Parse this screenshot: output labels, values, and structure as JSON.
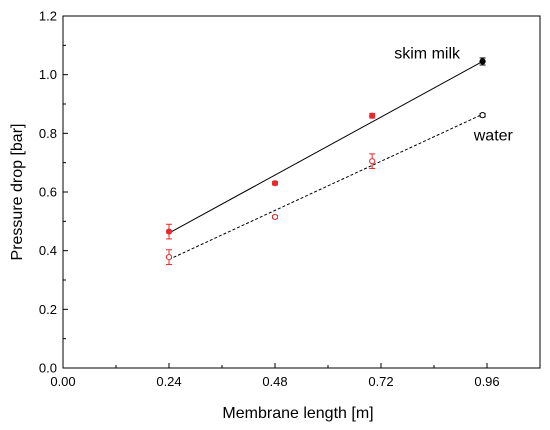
{
  "chart_data": {
    "type": "scatter",
    "xlabel": "Membrane length [m]",
    "ylabel": "Pressure drop [bar]",
    "xlim": [
      0,
      1.08
    ],
    "ylim": [
      0,
      1.2
    ],
    "x_ticks": [
      0,
      0.24,
      0.48,
      0.72,
      0.96
    ],
    "x_tick_labels": [
      "0.00",
      "0.24",
      "0.48",
      "0.72",
      "0.96"
    ],
    "y_ticks": [
      0,
      0.2,
      0.4,
      0.6,
      0.8,
      1.0,
      1.2
    ],
    "y_tick_labels": [
      "0.0",
      "0.2",
      "0.4",
      "0.6",
      "0.8",
      "1.0",
      "1.2"
    ],
    "grid": false,
    "series": [
      {
        "name": "skim milk",
        "marker": "filled-circle",
        "line_style": "solid",
        "x": [
          0.24,
          0.48,
          0.7,
          0.95
        ],
        "y": [
          0.465,
          0.63,
          0.86,
          1.045
        ],
        "error": [
          0.025,
          0.006,
          0.008,
          0.012
        ],
        "point_colors": [
          "#e8282b",
          "#e8282b",
          "#e8282b",
          "#000000"
        ],
        "fit": {
          "x": [
            0.24,
            0.95
          ],
          "y": [
            0.46,
            1.045
          ]
        }
      },
      {
        "name": "water",
        "marker": "open-circle",
        "line_style": "dashed",
        "x": [
          0.24,
          0.48,
          0.7,
          0.95
        ],
        "y": [
          0.378,
          0.515,
          0.705,
          0.862
        ],
        "error": [
          0.025,
          0.005,
          0.025,
          0.006
        ],
        "point_colors": [
          "#e8282b",
          "#e8282b",
          "#e8282b",
          "#000000"
        ],
        "fit": {
          "x": [
            0.24,
            0.95
          ],
          "y": [
            0.37,
            0.865
          ]
        }
      }
    ],
    "annotations": [
      {
        "text": "skim milk",
        "x": 0.75,
        "y": 1.055
      },
      {
        "text": "water",
        "x": 0.93,
        "y": 0.775
      }
    ]
  }
}
